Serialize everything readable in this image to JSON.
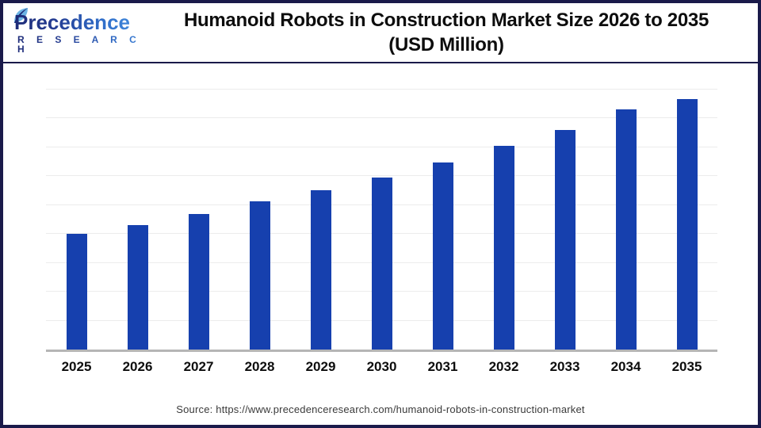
{
  "header": {
    "logo": {
      "name": "Precedence",
      "subname": "R E S E A R C H"
    },
    "title_line1": "Humanoid Robots in Construction Market Size 2026 to 2035",
    "title_line2": "(USD Million)"
  },
  "footer": {
    "source": "Source: https://www.precedenceresearch.com/humanoid-robots-in-construction-market"
  },
  "colors": {
    "bar": "#1640ae",
    "frame_border": "#1a1a4a",
    "gridline": "#ececec",
    "axis_line": "#b5b5b5",
    "title_text": "#0d0d0d",
    "logo_navy": "#1d2b77",
    "logo_blue": "#2f6cc8",
    "leaf_blue": "#6cb4e4"
  },
  "chart_data": {
    "type": "bar",
    "title": "Humanoid Robots in Construction Market Size 2026 to 2035 (USD Million)",
    "categories": [
      "2025",
      "2026",
      "2027",
      "2028",
      "2029",
      "2030",
      "2031",
      "2032",
      "2033",
      "2034",
      "2035"
    ],
    "values": [
      100,
      108,
      117,
      128,
      138,
      149,
      162,
      176,
      190,
      208,
      217
    ],
    "unit": "USD Million",
    "xlabel": "",
    "ylabel": "",
    "y_axis": {
      "visible": false,
      "min": 0,
      "max": 240,
      "gridline_step": 25
    },
    "grid": true,
    "legend": "none",
    "value_labels_shown": false,
    "bar_color": "#1640ae"
  }
}
